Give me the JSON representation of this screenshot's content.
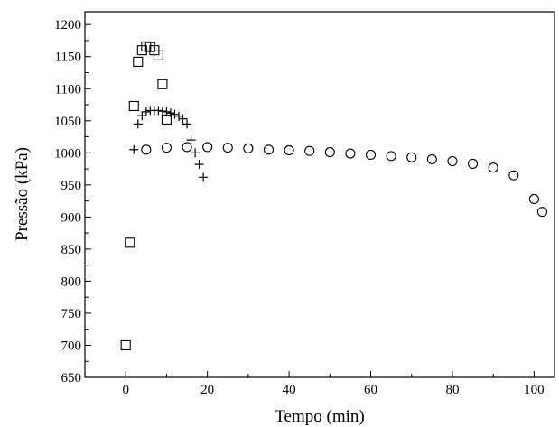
{
  "chart_data": {
    "type": "scatter",
    "title": "",
    "xlabel": "Tempo (min)",
    "ylabel": "Pressão (kPa)",
    "xlim": [
      -10,
      105
    ],
    "ylim": [
      650,
      1220
    ],
    "x_ticks": [
      0,
      20,
      40,
      60,
      80,
      100
    ],
    "y_ticks": [
      650,
      700,
      750,
      800,
      850,
      900,
      950,
      1000,
      1050,
      1100,
      1150,
      1200
    ],
    "grid": false,
    "legend": "none",
    "series": [
      {
        "marker": "square",
        "x": [
          0,
          1,
          2,
          3,
          4,
          5,
          6,
          7,
          8,
          9,
          10
        ],
        "y": [
          700,
          860,
          1073,
          1142,
          1160,
          1166,
          1165,
          1160,
          1152,
          1107,
          1052
        ]
      },
      {
        "marker": "plus",
        "x": [
          2,
          3,
          4,
          5,
          6,
          7,
          8,
          9,
          10,
          11,
          12,
          13,
          14,
          15,
          16,
          17,
          18,
          19
        ],
        "y": [
          1005,
          1045,
          1058,
          1064,
          1066,
          1066,
          1066,
          1065,
          1064,
          1062,
          1060,
          1057,
          1053,
          1045,
          1020,
          1000,
          982,
          962
        ]
      },
      {
        "marker": "circle",
        "x": [
          5,
          10,
          15,
          20,
          25,
          30,
          35,
          40,
          45,
          50,
          55,
          60,
          65,
          70,
          75,
          80,
          85,
          90,
          95,
          100,
          102
        ],
        "y": [
          1005,
          1008,
          1009,
          1009,
          1008,
          1007,
          1005,
          1004,
          1003,
          1001,
          999,
          997,
          995,
          993,
          990,
          987,
          983,
          977,
          965,
          928,
          908
        ]
      }
    ]
  }
}
